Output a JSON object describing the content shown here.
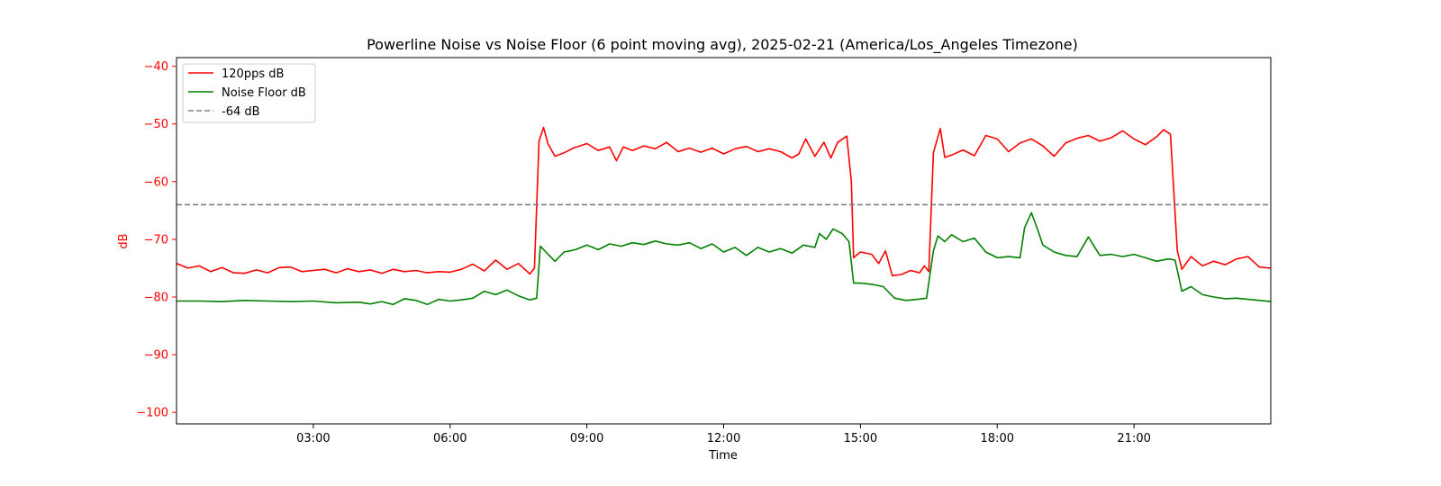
{
  "chart_data": {
    "type": "line",
    "title": "Powerline Noise vs Noise Floor (6 point moving avg), 2025-02-21 (America/Los_Angeles Timezone)",
    "xlabel": "Time",
    "ylabel": "dB",
    "x_unit": "hour of day",
    "xlim": [
      0,
      24
    ],
    "ylim": [
      -102,
      -38.5
    ],
    "x_ticks": [
      {
        "value": 3,
        "label": "03:00"
      },
      {
        "value": 6,
        "label": "06:00"
      },
      {
        "value": 9,
        "label": "09:00"
      },
      {
        "value": 12,
        "label": "12:00"
      },
      {
        "value": 15,
        "label": "15:00"
      },
      {
        "value": 18,
        "label": "18:00"
      },
      {
        "value": 21,
        "label": "21:00"
      }
    ],
    "y_ticks": [
      {
        "value": -40,
        "label": "−40"
      },
      {
        "value": -50,
        "label": "−50"
      },
      {
        "value": -60,
        "label": "−60"
      },
      {
        "value": -70,
        "label": "−70"
      },
      {
        "value": -80,
        "label": "−80"
      },
      {
        "value": -90,
        "label": "−90"
      },
      {
        "value": -100,
        "label": "−100"
      }
    ],
    "grid": false,
    "legend_position": "top-left",
    "y_axis_color": "#ff0000",
    "series": [
      {
        "name": "120pps dB",
        "color": "#ff0000",
        "style": "solid",
        "points": [
          [
            0.0,
            -74.2
          ],
          [
            0.25,
            -75.0
          ],
          [
            0.5,
            -74.6
          ],
          [
            0.75,
            -75.6
          ],
          [
            1.0,
            -74.9
          ],
          [
            1.25,
            -75.8
          ],
          [
            1.5,
            -75.9
          ],
          [
            1.75,
            -75.3
          ],
          [
            2.0,
            -75.8
          ],
          [
            2.25,
            -74.9
          ],
          [
            2.5,
            -74.8
          ],
          [
            2.75,
            -75.6
          ],
          [
            3.0,
            -75.4
          ],
          [
            3.25,
            -75.2
          ],
          [
            3.5,
            -75.8
          ],
          [
            3.75,
            -75.1
          ],
          [
            4.0,
            -75.6
          ],
          [
            4.25,
            -75.3
          ],
          [
            4.5,
            -75.9
          ],
          [
            4.75,
            -75.2
          ],
          [
            5.0,
            -75.6
          ],
          [
            5.25,
            -75.4
          ],
          [
            5.5,
            -75.8
          ],
          [
            5.75,
            -75.6
          ],
          [
            6.0,
            -75.7
          ],
          [
            6.25,
            -75.2
          ],
          [
            6.5,
            -74.3
          ],
          [
            6.75,
            -75.5
          ],
          [
            7.0,
            -73.6
          ],
          [
            7.25,
            -75.2
          ],
          [
            7.5,
            -74.2
          ],
          [
            7.75,
            -76.0
          ],
          [
            7.85,
            -75.0
          ],
          [
            7.95,
            -53.0
          ],
          [
            8.05,
            -50.6
          ],
          [
            8.15,
            -53.5
          ],
          [
            8.3,
            -55.6
          ],
          [
            8.5,
            -55.0
          ],
          [
            8.7,
            -54.2
          ],
          [
            9.0,
            -53.4
          ],
          [
            9.25,
            -54.6
          ],
          [
            9.5,
            -54.0
          ],
          [
            9.65,
            -56.4
          ],
          [
            9.8,
            -54.0
          ],
          [
            10.0,
            -54.6
          ],
          [
            10.25,
            -53.8
          ],
          [
            10.5,
            -54.3
          ],
          [
            10.75,
            -53.2
          ],
          [
            11.0,
            -54.8
          ],
          [
            11.25,
            -54.2
          ],
          [
            11.5,
            -54.9
          ],
          [
            11.75,
            -54.2
          ],
          [
            12.0,
            -55.2
          ],
          [
            12.25,
            -54.3
          ],
          [
            12.5,
            -53.9
          ],
          [
            12.75,
            -54.8
          ],
          [
            13.0,
            -54.3
          ],
          [
            13.25,
            -54.8
          ],
          [
            13.5,
            -55.9
          ],
          [
            13.65,
            -55.2
          ],
          [
            13.8,
            -52.6
          ],
          [
            14.0,
            -55.6
          ],
          [
            14.2,
            -53.2
          ],
          [
            14.35,
            -55.9
          ],
          [
            14.5,
            -53.2
          ],
          [
            14.7,
            -52.1
          ],
          [
            14.8,
            -60.0
          ],
          [
            14.85,
            -73.2
          ],
          [
            15.0,
            -72.2
          ],
          [
            15.25,
            -72.6
          ],
          [
            15.4,
            -74.2
          ],
          [
            15.55,
            -72.0
          ],
          [
            15.7,
            -76.3
          ],
          [
            15.9,
            -76.1
          ],
          [
            16.1,
            -75.4
          ],
          [
            16.3,
            -75.8
          ],
          [
            16.4,
            -74.6
          ],
          [
            16.5,
            -75.6
          ],
          [
            16.6,
            -55.0
          ],
          [
            16.75,
            -50.8
          ],
          [
            16.85,
            -55.8
          ],
          [
            17.0,
            -55.4
          ],
          [
            17.25,
            -54.5
          ],
          [
            17.5,
            -55.5
          ],
          [
            17.75,
            -52.0
          ],
          [
            18.0,
            -52.6
          ],
          [
            18.25,
            -54.8
          ],
          [
            18.5,
            -53.3
          ],
          [
            18.75,
            -52.6
          ],
          [
            19.0,
            -53.8
          ],
          [
            19.25,
            -55.6
          ],
          [
            19.5,
            -53.3
          ],
          [
            19.75,
            -52.5
          ],
          [
            20.0,
            -52.0
          ],
          [
            20.25,
            -53.0
          ],
          [
            20.5,
            -52.4
          ],
          [
            20.75,
            -51.2
          ],
          [
            21.0,
            -52.6
          ],
          [
            21.25,
            -53.6
          ],
          [
            21.5,
            -52.2
          ],
          [
            21.65,
            -51.0
          ],
          [
            21.8,
            -51.8
          ],
          [
            21.95,
            -72.0
          ],
          [
            22.05,
            -75.2
          ],
          [
            22.25,
            -73.0
          ],
          [
            22.5,
            -74.6
          ],
          [
            22.75,
            -73.8
          ],
          [
            23.0,
            -74.4
          ],
          [
            23.25,
            -73.4
          ],
          [
            23.5,
            -73.0
          ],
          [
            23.75,
            -74.8
          ],
          [
            24.0,
            -75.0
          ]
        ]
      },
      {
        "name": "Noise Floor dB",
        "color": "#008000",
        "style": "solid",
        "points": [
          [
            0.0,
            -80.7
          ],
          [
            0.5,
            -80.7
          ],
          [
            1.0,
            -80.8
          ],
          [
            1.5,
            -80.6
          ],
          [
            2.0,
            -80.7
          ],
          [
            2.5,
            -80.8
          ],
          [
            3.0,
            -80.7
          ],
          [
            3.5,
            -81.0
          ],
          [
            4.0,
            -80.9
          ],
          [
            4.25,
            -81.2
          ],
          [
            4.5,
            -80.8
          ],
          [
            4.75,
            -81.3
          ],
          [
            5.0,
            -80.3
          ],
          [
            5.25,
            -80.6
          ],
          [
            5.5,
            -81.3
          ],
          [
            5.75,
            -80.4
          ],
          [
            6.0,
            -80.7
          ],
          [
            6.25,
            -80.5
          ],
          [
            6.5,
            -80.2
          ],
          [
            6.75,
            -79.0
          ],
          [
            7.0,
            -79.6
          ],
          [
            7.25,
            -78.8
          ],
          [
            7.5,
            -79.8
          ],
          [
            7.75,
            -80.5
          ],
          [
            7.9,
            -80.2
          ],
          [
            7.98,
            -71.2
          ],
          [
            8.1,
            -72.2
          ],
          [
            8.3,
            -73.8
          ],
          [
            8.5,
            -72.2
          ],
          [
            8.75,
            -71.8
          ],
          [
            9.0,
            -71.0
          ],
          [
            9.25,
            -71.8
          ],
          [
            9.5,
            -70.8
          ],
          [
            9.75,
            -71.2
          ],
          [
            10.0,
            -70.6
          ],
          [
            10.25,
            -70.9
          ],
          [
            10.5,
            -70.3
          ],
          [
            10.75,
            -70.8
          ],
          [
            11.0,
            -71.0
          ],
          [
            11.25,
            -70.6
          ],
          [
            11.5,
            -71.6
          ],
          [
            11.75,
            -70.8
          ],
          [
            12.0,
            -72.2
          ],
          [
            12.25,
            -71.4
          ],
          [
            12.5,
            -72.8
          ],
          [
            12.75,
            -71.4
          ],
          [
            13.0,
            -72.2
          ],
          [
            13.25,
            -71.6
          ],
          [
            13.5,
            -72.4
          ],
          [
            13.75,
            -71.0
          ],
          [
            14.0,
            -71.4
          ],
          [
            14.1,
            -69.0
          ],
          [
            14.25,
            -70.0
          ],
          [
            14.4,
            -68.2
          ],
          [
            14.6,
            -69.0
          ],
          [
            14.75,
            -70.4
          ],
          [
            14.85,
            -77.6
          ],
          [
            15.0,
            -77.6
          ],
          [
            15.25,
            -77.8
          ],
          [
            15.5,
            -78.2
          ],
          [
            15.75,
            -80.2
          ],
          [
            16.0,
            -80.6
          ],
          [
            16.25,
            -80.4
          ],
          [
            16.45,
            -80.2
          ],
          [
            16.6,
            -72.0
          ],
          [
            16.7,
            -69.4
          ],
          [
            16.85,
            -70.4
          ],
          [
            17.0,
            -69.2
          ],
          [
            17.25,
            -70.4
          ],
          [
            17.5,
            -69.8
          ],
          [
            17.75,
            -72.2
          ],
          [
            18.0,
            -73.2
          ],
          [
            18.25,
            -73.0
          ],
          [
            18.5,
            -73.2
          ],
          [
            18.6,
            -68.0
          ],
          [
            18.75,
            -65.4
          ],
          [
            18.9,
            -68.6
          ],
          [
            19.0,
            -71.0
          ],
          [
            19.25,
            -72.2
          ],
          [
            19.5,
            -72.8
          ],
          [
            19.75,
            -73.0
          ],
          [
            20.0,
            -69.6
          ],
          [
            20.25,
            -72.8
          ],
          [
            20.5,
            -72.6
          ],
          [
            20.75,
            -73.0
          ],
          [
            21.0,
            -72.6
          ],
          [
            21.25,
            -73.2
          ],
          [
            21.5,
            -73.8
          ],
          [
            21.75,
            -73.4
          ],
          [
            21.9,
            -73.6
          ],
          [
            22.05,
            -79.0
          ],
          [
            22.25,
            -78.2
          ],
          [
            22.5,
            -79.6
          ],
          [
            22.75,
            -80.0
          ],
          [
            23.0,
            -80.3
          ],
          [
            23.25,
            -80.2
          ],
          [
            23.5,
            -80.4
          ],
          [
            23.75,
            -80.6
          ],
          [
            24.0,
            -80.8
          ]
        ]
      },
      {
        "name": "-64 dB",
        "color": "#808080",
        "style": "dashed",
        "points": [
          [
            0,
            -64
          ],
          [
            24,
            -64
          ]
        ]
      }
    ]
  }
}
